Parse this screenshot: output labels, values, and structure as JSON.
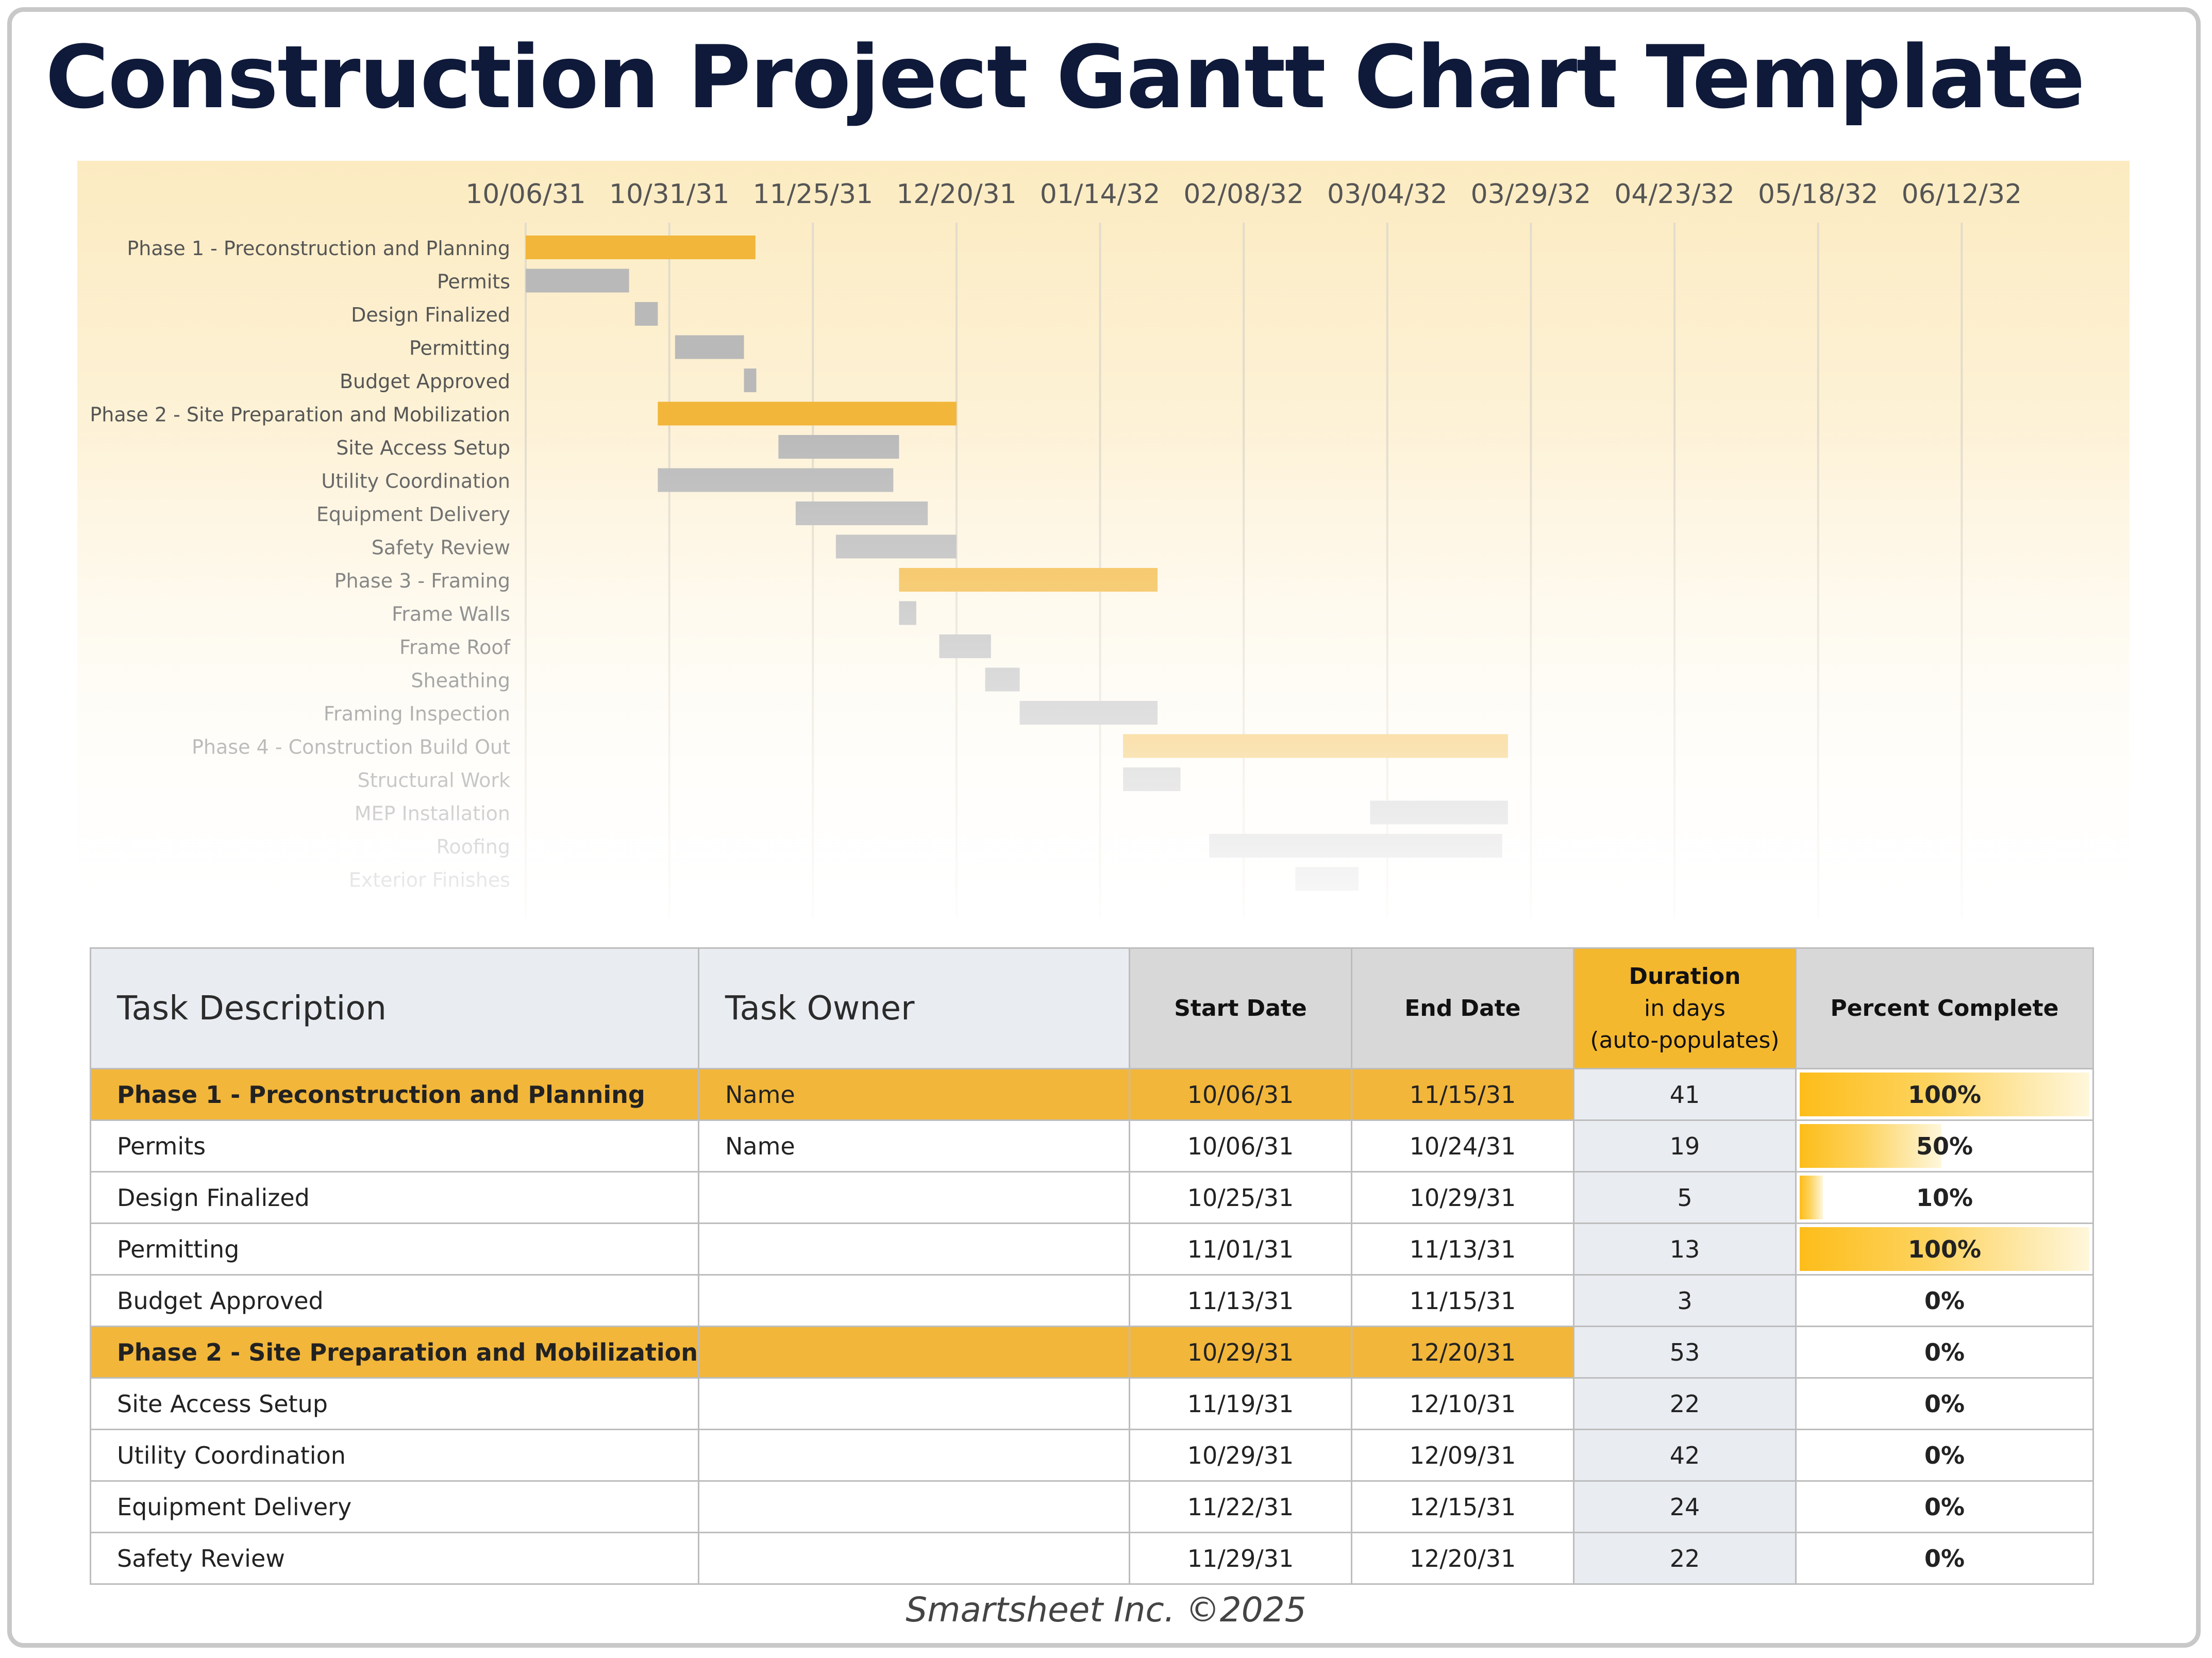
{
  "title": "Construction Project Gantt Chart Template",
  "footer": "Smartsheet Inc. ©2025",
  "colors": {
    "phase_bar": "#f2b63a",
    "task_bar": "#b9b9b9",
    "panel_top": "#fcebc1",
    "header_accent": "#f4b82e",
    "percent_fill": "#fdbd1a",
    "title_text": "#0f1a3a"
  },
  "chart_data": {
    "type": "gantt",
    "x_axis_type": "date",
    "x_axis_start": "2031-10-06",
    "x_axis_end": "2032-07-07",
    "x_tick_dates": [
      "2031-10-06",
      "2031-10-31",
      "2031-11-25",
      "2031-12-20",
      "2032-01-14",
      "2032-02-08",
      "2032-03-04",
      "2032-03-29",
      "2032-04-23",
      "2032-05-18",
      "2032-06-12"
    ],
    "x_tick_labels": [
      "10/06/31",
      "10/31/31",
      "11/25/31",
      "12/20/31",
      "01/14/32",
      "02/08/32",
      "03/04/32",
      "03/29/32",
      "04/23/32",
      "05/18/32",
      "06/12/32"
    ],
    "grid": true,
    "tasks": [
      {
        "name": "Phase 1 - Preconstruction and Planning",
        "start": "2031-10-06",
        "end": "2031-11-15",
        "phase": true
      },
      {
        "name": "Permits",
        "start": "2031-10-06",
        "end": "2031-10-24",
        "phase": false
      },
      {
        "name": "Design Finalized",
        "start": "2031-10-25",
        "end": "2031-10-29",
        "phase": false
      },
      {
        "name": "Permitting",
        "start": "2031-11-01",
        "end": "2031-11-13",
        "phase": false
      },
      {
        "name": "Budget Approved",
        "start": "2031-11-13",
        "end": "2031-11-15",
        "phase": false
      },
      {
        "name": "Phase 2 - Site Preparation and Mobilization",
        "start": "2031-10-29",
        "end": "2031-12-20",
        "phase": true
      },
      {
        "name": "Site Access Setup",
        "start": "2031-11-19",
        "end": "2031-12-10",
        "phase": false
      },
      {
        "name": "Utility Coordination",
        "start": "2031-10-29",
        "end": "2031-12-09",
        "phase": false
      },
      {
        "name": "Equipment Delivery",
        "start": "2031-11-22",
        "end": "2031-12-15",
        "phase": false
      },
      {
        "name": "Safety Review",
        "start": "2031-11-29",
        "end": "2031-12-20",
        "phase": false
      },
      {
        "name": "Phase 3 - Framing",
        "start": "2031-12-10",
        "end": "2032-01-24",
        "phase": true
      },
      {
        "name": "Frame Walls",
        "start": "2031-12-10",
        "end": "2031-12-13",
        "phase": false
      },
      {
        "name": "Frame Roof",
        "start": "2031-12-17",
        "end": "2031-12-26",
        "phase": false
      },
      {
        "name": "Sheathing",
        "start": "2031-12-25",
        "end": "2031-12-31",
        "phase": false
      },
      {
        "name": "Framing Inspection",
        "start": "2031-12-31",
        "end": "2032-01-24",
        "phase": false
      },
      {
        "name": "Phase 4 - Construction Build Out",
        "start": "2032-01-18",
        "end": "2032-03-25",
        "phase": true
      },
      {
        "name": "Structural Work",
        "start": "2032-01-18",
        "end": "2032-01-28",
        "phase": false
      },
      {
        "name": "MEP Installation",
        "start": "2032-03-01",
        "end": "2032-03-25",
        "phase": false
      },
      {
        "name": "Roofing",
        "start": "2032-02-02",
        "end": "2032-03-24",
        "phase": false
      },
      {
        "name": "Exterior Finishes",
        "start": "2032-02-17",
        "end": "2032-02-28",
        "phase": false
      }
    ]
  },
  "table": {
    "headers": {
      "task_description": "Task Description",
      "task_owner": "Task Owner",
      "start_date": "Start Date",
      "end_date": "End Date",
      "duration_line1": "Duration",
      "duration_line2": "in days",
      "duration_line3": "(auto-populates)",
      "percent_complete": "Percent Complete"
    },
    "rows": [
      {
        "desc": "Phase 1 - Preconstruction and Planning",
        "owner": "Name",
        "start": "10/06/31",
        "end": "11/15/31",
        "duration": "41",
        "pct_label": "100%",
        "pct": 1.0,
        "phase": true
      },
      {
        "desc": "Permits",
        "owner": "Name",
        "start": "10/06/31",
        "end": "10/24/31",
        "duration": "19",
        "pct_label": "50%",
        "pct": 0.5,
        "phase": false
      },
      {
        "desc": "Design Finalized",
        "owner": "",
        "start": "10/25/31",
        "end": "10/29/31",
        "duration": "5",
        "pct_label": "10%",
        "pct": 0.1,
        "phase": false
      },
      {
        "desc": "Permitting",
        "owner": "",
        "start": "11/01/31",
        "end": "11/13/31",
        "duration": "13",
        "pct_label": "100%",
        "pct": 1.0,
        "phase": false
      },
      {
        "desc": "Budget Approved",
        "owner": "",
        "start": "11/13/31",
        "end": "11/15/31",
        "duration": "3",
        "pct_label": "0%",
        "pct": 0,
        "phase": false
      },
      {
        "desc": "Phase 2 - Site Preparation and Mobilization",
        "owner": "",
        "start": "10/29/31",
        "end": "12/20/31",
        "duration": "53",
        "pct_label": "0%",
        "pct": 0,
        "phase": true
      },
      {
        "desc": "Site Access Setup",
        "owner": "",
        "start": "11/19/31",
        "end": "12/10/31",
        "duration": "22",
        "pct_label": "0%",
        "pct": 0,
        "phase": false
      },
      {
        "desc": "Utility Coordination",
        "owner": "",
        "start": "10/29/31",
        "end": "12/09/31",
        "duration": "42",
        "pct_label": "0%",
        "pct": 0,
        "phase": false
      },
      {
        "desc": "Equipment Delivery",
        "owner": "",
        "start": "11/22/31",
        "end": "12/15/31",
        "duration": "24",
        "pct_label": "0%",
        "pct": 0,
        "phase": false
      },
      {
        "desc": "Safety Review",
        "owner": "",
        "start": "11/29/31",
        "end": "12/20/31",
        "duration": "22",
        "pct_label": "0%",
        "pct": 0,
        "phase": false
      }
    ]
  }
}
